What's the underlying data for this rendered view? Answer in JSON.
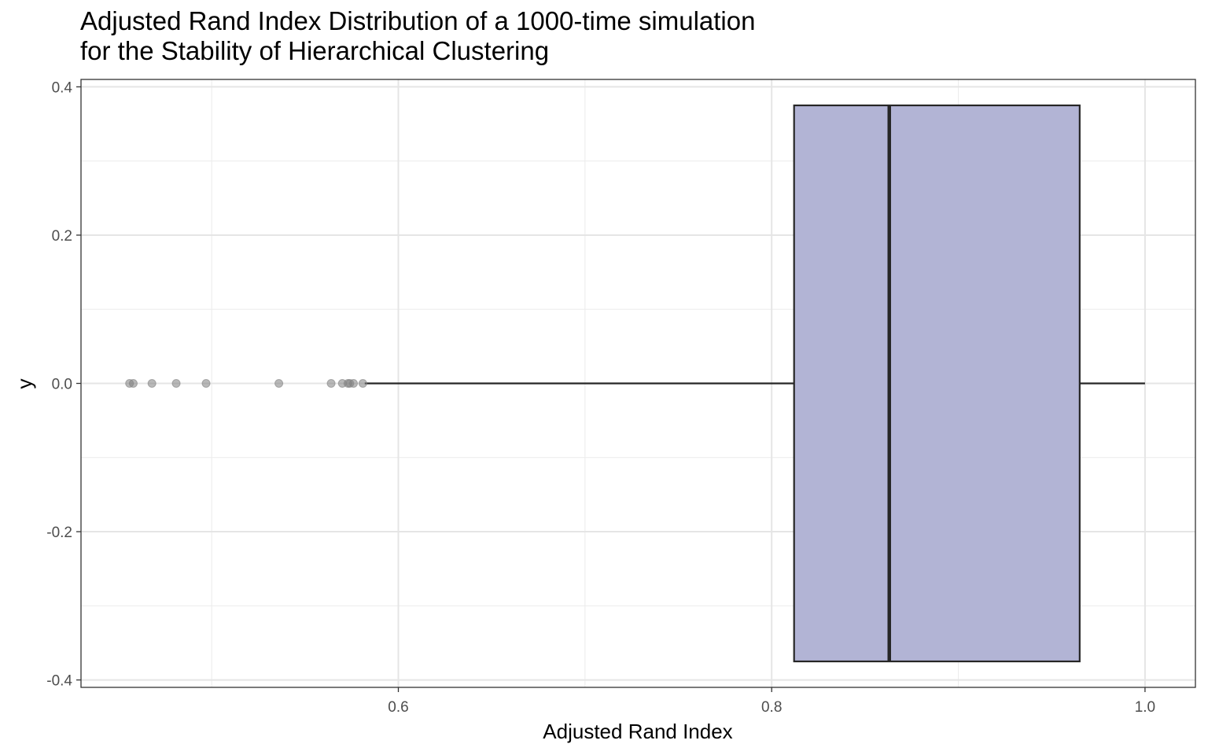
{
  "chart_data": {
    "type": "boxplot",
    "title_lines": [
      "Adjusted Rand Index Distribution of a 1000-time simulation",
      "for the Stability of Hierarchical Clustering"
    ],
    "xlabel": "Adjusted Rand Index",
    "ylabel": "y",
    "xlim": [
      0.43,
      1.027
    ],
    "ylim": [
      -0.41,
      0.41
    ],
    "x_ticks": [
      0.6,
      0.8,
      1.0
    ],
    "x_tick_labels": [
      "0.6",
      "0.8",
      "1.0"
    ],
    "y_ticks": [
      -0.4,
      -0.2,
      0.0,
      0.2,
      0.4
    ],
    "y_tick_labels": [
      "-0.4",
      "-0.2",
      "0.0",
      "0.2",
      "0.4"
    ],
    "grid": true,
    "box": {
      "y": 0.0,
      "half_height": 0.375,
      "whisker_low": 0.582,
      "q1": 0.812,
      "median": 0.863,
      "q3": 0.965,
      "whisker_high": 1.0,
      "fill": "#b2b4d5",
      "outline": "#262626"
    },
    "outliers": [
      0.456,
      0.458,
      0.468,
      0.481,
      0.497,
      0.536,
      0.564,
      0.57,
      0.573,
      0.574,
      0.576,
      0.581
    ],
    "outlier_color": "#808080"
  }
}
